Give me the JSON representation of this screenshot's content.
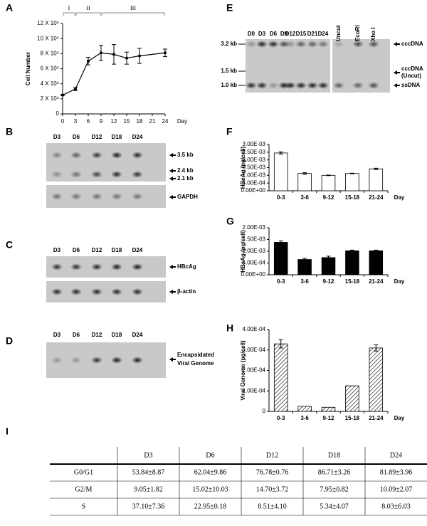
{
  "chart_data": [
    {
      "type": "line",
      "panel": "A",
      "y_label": "Cell Number",
      "x_label": "Day",
      "x": [
        0,
        3,
        6,
        9,
        12,
        15,
        18,
        24
      ],
      "y": [
        2500000,
        3300000,
        7000000,
        8100000,
        7900000,
        7400000,
        7700000,
        8100000
      ],
      "errors": [
        100000,
        200000,
        500000,
        1000000,
        1300000,
        800000,
        1000000,
        500000
      ],
      "color": "#000000",
      "xlim": [
        0,
        24
      ],
      "xticks": [
        0,
        3,
        6,
        9,
        12,
        15,
        18,
        21,
        24
      ],
      "ylim": [
        0,
        12000000
      ],
      "yticks": [
        0,
        {
          "value": 2000000,
          "label": "2 X 10⁶"
        },
        {
          "value": 4000000,
          "label": "4 X 10⁶"
        },
        {
          "value": 6000000,
          "label": "6 X 10⁶"
        },
        {
          "value": 8000000,
          "label": "8 X 10⁶"
        },
        {
          "value": 10000000,
          "label": "10 X 10⁶"
        },
        {
          "value": 12000000,
          "label": "12 X 10⁶"
        }
      ],
      "phases": [
        {
          "label": "I",
          "start": 0,
          "end": 3
        },
        {
          "label": "II",
          "start": 3,
          "end": 9
        },
        {
          "label": "III",
          "start": 9,
          "end": 24
        }
      ]
    },
    {
      "type": "bar",
      "panel": "F",
      "y_label": "HBeAg (pg/cell)",
      "x_label": "Day",
      "categories": [
        "0-3",
        "3-6",
        "9-12",
        "15-18",
        "21-24"
      ],
      "values": [
        0.00245,
        0.00112,
        0.001,
        0.00112,
        0.00142
      ],
      "errors": [
        7e-05,
        5e-05,
        2e-05,
        2e-05,
        4e-05
      ],
      "color": "#ffffff",
      "hatch": false,
      "ylim": [
        0,
        0.003
      ],
      "yticks": [
        {
          "value": 0,
          "label": "0.00E+00"
        },
        {
          "value": 0.0005,
          "label": "5.00E-04"
        },
        {
          "value": 0.001,
          "label": "1.00E-03"
        },
        {
          "value": 0.0015,
          "label": "1.50E-03"
        },
        {
          "value": 0.002,
          "label": "2.00E-03"
        },
        {
          "value": 0.0025,
          "label": "2.50E-03"
        },
        {
          "value": 0.003,
          "label": "3.00E-03"
        }
      ]
    },
    {
      "type": "bar",
      "panel": "G",
      "y_label": "HBsAg (pg/cell)",
      "x_label": "Day",
      "categories": [
        "0-3",
        "3-6",
        "9-12",
        "15-18",
        "21-24"
      ],
      "values": [
        0.00138,
        0.00065,
        0.00073,
        0.00102,
        0.00102
      ],
      "errors": [
        6e-05,
        5e-05,
        6e-05,
        3e-05,
        3e-05
      ],
      "color": "#000000",
      "hatch": false,
      "ylim": [
        0,
        0.002
      ],
      "yticks": [
        {
          "value": 0,
          "label": "0.00E+00"
        },
        {
          "value": 0.0005,
          "label": "5.00E-04"
        },
        {
          "value": 0.001,
          "label": "1.00E-03"
        },
        {
          "value": 0.0015,
          "label": "1.50E-03"
        },
        {
          "value": 0.002,
          "label": "2.00E-03"
        }
      ]
    },
    {
      "type": "bar",
      "panel": "H",
      "y_label": "Viral Genome (pg/cell)",
      "x_label": "Day",
      "categories": [
        "0-3",
        "3-6",
        "9-12",
        "15-18",
        "21-24"
      ],
      "values": [
        0.00033,
        2.5e-05,
        2e-05,
        0.000125,
        0.00031
      ],
      "errors": [
        2e-05,
        0,
        0,
        0,
        1.5e-05
      ],
      "color": "#ffffff",
      "hatch": true,
      "ylim": [
        0,
        0.0004
      ],
      "yticks": [
        0,
        {
          "value": 0.0001,
          "label": "1.00E-04"
        },
        {
          "value": 0.0002,
          "label": "2.00E-04"
        },
        {
          "value": 0.0003,
          "label": "3.00E-04"
        },
        {
          "value": 0.0004,
          "label": "4.00E-04"
        }
      ]
    }
  ],
  "blots": [
    {
      "panel": "E",
      "lanes": [
        "D0",
        "D3",
        "D6",
        "D9",
        "D12",
        "D15",
        "D21",
        "D24",
        "Uncut",
        "EcoRI",
        "Xho I"
      ],
      "sizes": [
        "3.2 kb",
        "1.5 kb",
        "1.0 kb"
      ],
      "markers": [
        [
          "cccDNA"
        ],
        [
          "cccDNA",
          "(Uncut)"
        ],
        [
          "ssDNA"
        ]
      ]
    },
    {
      "panel": "B",
      "lanes": [
        "D3",
        "D6",
        "D12",
        "D18",
        "D24"
      ],
      "markers": [
        [
          "3.5 kb"
        ],
        [
          "2.4 kb"
        ],
        [
          "2.1 kb"
        ],
        [
          "GAPDH"
        ]
      ]
    },
    {
      "panel": "C",
      "lanes": [
        "D3",
        "D6",
        "D12",
        "D18",
        "D24"
      ],
      "markers": [
        [
          "HBcAg"
        ],
        [
          "β-actin"
        ]
      ]
    },
    {
      "panel": "D",
      "lanes": [
        "D3",
        "D6",
        "D12",
        "D18",
        "D24"
      ],
      "markers": [
        [
          "Encapsidated",
          "Viral Genome"
        ]
      ]
    }
  ],
  "table": {
    "panel": "I",
    "header": [
      "D3",
      "D6",
      "D12",
      "D18",
      "D24"
    ],
    "rows": [
      [
        "G0/G1",
        "53.84±8.87",
        "62.04±9.86",
        "76.78±0.76",
        "86.71±3.26",
        "81.89±3.96"
      ],
      [
        "G2/M",
        "9.05±1.82",
        "15.02±10.03",
        "14.70±3.72",
        "7.95±0.82",
        "10.09±2.07"
      ],
      [
        "S",
        "37.10±7.36",
        "22.95±0.18",
        "8.51±4.10",
        "5.34±4.07",
        "8.03±6.03"
      ]
    ]
  }
}
